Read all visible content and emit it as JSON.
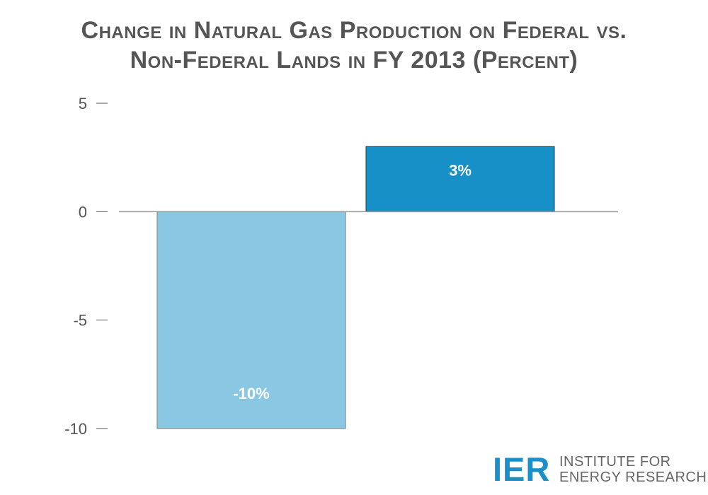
{
  "title": {
    "line1": "Change in Natural Gas Production on Federal vs.",
    "line2": "Non-Federal Lands in FY 2013 (Percent)"
  },
  "colors": {
    "federal_bar": "#8ac7e2",
    "non_federal_bar": "#1690c7",
    "axis": "#999999",
    "text": "#555555",
    "logo": "#1b8fc9"
  },
  "chart_data": {
    "type": "bar",
    "title": "Change in Natural Gas Production on Federal vs. Non-Federal Lands in FY 2013 (Percent)",
    "categories": [
      "",
      ""
    ],
    "values": [
      -10,
      3
    ],
    "data_labels": [
      "-10%",
      "3%"
    ],
    "ylim": [
      -10,
      5
    ],
    "yticks": [
      5,
      0,
      -5,
      -10
    ],
    "ytick_labels": [
      "5",
      "0",
      "-5",
      "-10"
    ],
    "xlabel": "",
    "ylabel": "",
    "grid": false,
    "legend": "none"
  },
  "logo": {
    "mark": "IER",
    "line1": "INSTITUTE FOR",
    "line2": "ENERGY RESEARCH"
  }
}
